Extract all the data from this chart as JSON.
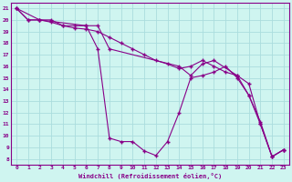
{
  "xlabel": "Windchill (Refroidissement éolien,°C)",
  "bg_color": "#cff5f0",
  "grid_color": "#aadddd",
  "line_color": "#880088",
  "xlim_min": -0.5,
  "xlim_max": 23.5,
  "ylim_min": 7.5,
  "ylim_max": 21.5,
  "xticks": [
    0,
    1,
    2,
    3,
    4,
    5,
    6,
    7,
    8,
    9,
    10,
    11,
    12,
    13,
    14,
    15,
    16,
    17,
    18,
    19,
    20,
    21,
    22,
    23
  ],
  "yticks": [
    8,
    9,
    10,
    11,
    12,
    13,
    14,
    15,
    16,
    17,
    18,
    19,
    20,
    21
  ],
  "line1_x": [
    0,
    1,
    2,
    3,
    4,
    5,
    6,
    7,
    8,
    9,
    10,
    11,
    12,
    13,
    14,
    15,
    16,
    17,
    18,
    19,
    20,
    21,
    22,
    23
  ],
  "line1_y": [
    21,
    20,
    20,
    20,
    19.5,
    19.5,
    19.5,
    17.5,
    9.8,
    9.5,
    9.5,
    8.7,
    8.3,
    9.5,
    12.0,
    15.0,
    15.2,
    15.5,
    16.0,
    15.0,
    13.5,
    11.0,
    8.2,
    8.8
  ],
  "line2_x": [
    0,
    1,
    2,
    3,
    4,
    5,
    6,
    7,
    8,
    9,
    10,
    11,
    12,
    13,
    14,
    15,
    16,
    17,
    18,
    19,
    20,
    21,
    22,
    23
  ],
  "line2_y": [
    21,
    20,
    20,
    19.8,
    19.5,
    19.3,
    19.2,
    19.0,
    18.5,
    18.0,
    17.5,
    17.0,
    16.5,
    16.2,
    15.8,
    16.0,
    16.5,
    16.0,
    15.5,
    15.2,
    14.5,
    11.0,
    8.2,
    8.8
  ],
  "line3_x": [
    0,
    2,
    6,
    7,
    8,
    14,
    15,
    16,
    17,
    19,
    20,
    21,
    22,
    23
  ],
  "line3_y": [
    21,
    20,
    19.5,
    19.5,
    17.5,
    16.0,
    15.2,
    16.2,
    16.5,
    15.2,
    13.5,
    11.2,
    8.2,
    8.8
  ]
}
